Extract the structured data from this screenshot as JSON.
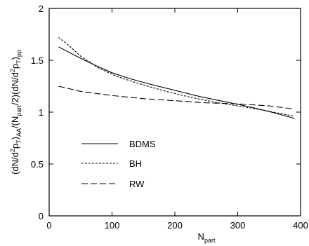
{
  "chart_data": {
    "type": "line",
    "xlabel_main": "N",
    "xlabel_sub": "part",
    "ylabel_parts": [
      {
        "t": "(dN/d",
        "s": "n"
      },
      {
        "t": "2",
        "s": "sup"
      },
      {
        "t": "p",
        "s": "n"
      },
      {
        "t": "T",
        "s": "sub"
      },
      {
        "t": ")",
        "s": "n"
      },
      {
        "t": "AA",
        "s": "sub"
      },
      {
        "t": "/(N",
        "s": "n"
      },
      {
        "t": "part",
        "s": "sub"
      },
      {
        "t": "/2)(dN/d",
        "s": "n"
      },
      {
        "t": "2",
        "s": "sup"
      },
      {
        "t": "p",
        "s": "n"
      },
      {
        "t": "T",
        "s": "sub"
      },
      {
        "t": ")",
        "s": "n"
      },
      {
        "t": "pp",
        "s": "sub"
      }
    ],
    "xlim": [
      0,
      400
    ],
    "ylim": [
      0,
      2
    ],
    "xticks": [
      0,
      100,
      200,
      300,
      400
    ],
    "yticks": [
      0,
      0.5,
      1,
      1.5,
      2
    ],
    "ytick_labels": [
      "0",
      "0.5",
      "1",
      "1.5",
      "2"
    ],
    "grid": false,
    "legend_position": "left-middle",
    "series": [
      {
        "name": "BDMS",
        "style": "solid",
        "x": [
          15,
          40,
          70,
          100,
          130,
          160,
          200,
          240,
          280,
          320,
          360,
          390
        ],
        "y": [
          1.63,
          1.55,
          1.46,
          1.38,
          1.32,
          1.27,
          1.21,
          1.15,
          1.1,
          1.05,
          0.99,
          0.94
        ]
      },
      {
        "name": "BH",
        "style": "dotted",
        "x": [
          15,
          30,
          50,
          80,
          110,
          140,
          180,
          220,
          260,
          300,
          340,
          390
        ],
        "y": [
          1.72,
          1.65,
          1.54,
          1.42,
          1.34,
          1.28,
          1.21,
          1.15,
          1.1,
          1.06,
          1.02,
          0.96
        ]
      },
      {
        "name": "RW",
        "style": "dashed",
        "x": [
          15,
          50,
          100,
          150,
          200,
          250,
          300,
          350,
          390
        ],
        "y": [
          1.25,
          1.2,
          1.16,
          1.13,
          1.11,
          1.09,
          1.08,
          1.06,
          1.03
        ]
      }
    ]
  }
}
